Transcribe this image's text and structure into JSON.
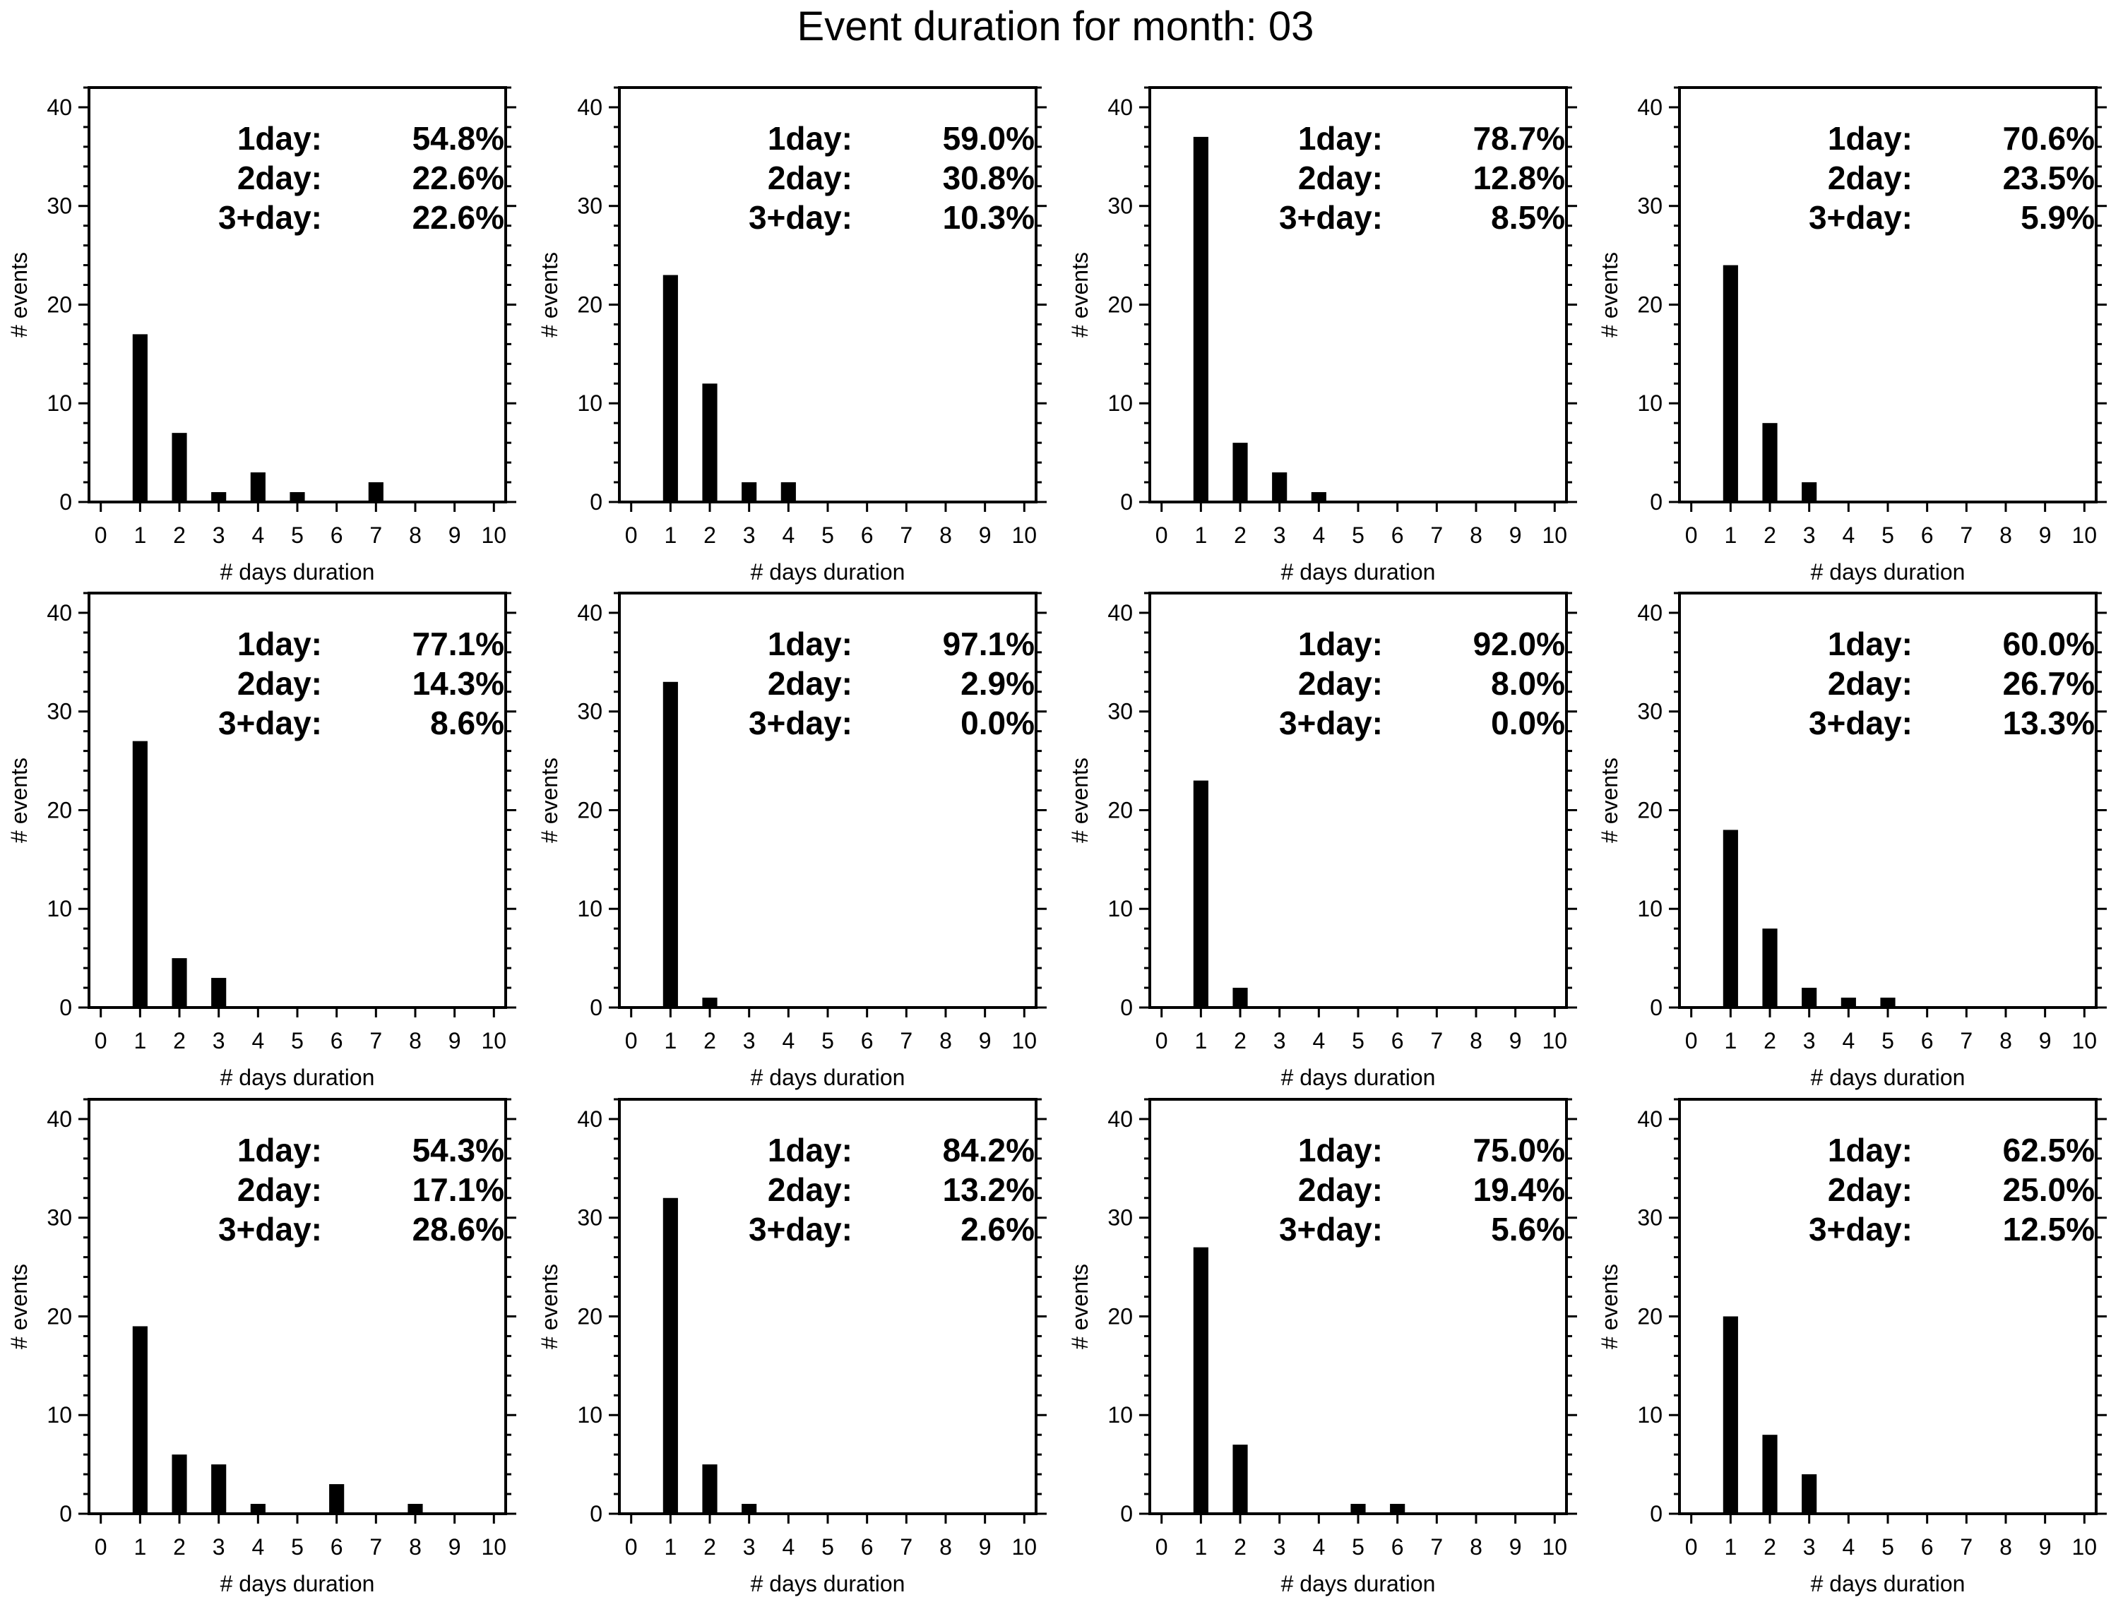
{
  "figure_title": "Event duration for month: 03",
  "chart_data": [
    {
      "type": "bar",
      "xlabel": "# days duration",
      "ylabel": "# events",
      "xlim": [
        -0.3,
        10.3
      ],
      "ylim": [
        0,
        42
      ],
      "xticks": [
        0,
        1,
        2,
        3,
        4,
        5,
        6,
        7,
        8,
        9,
        10
      ],
      "yticks": [
        0,
        10,
        20,
        30,
        40
      ],
      "x": [
        1,
        2,
        3,
        4,
        5,
        6,
        7,
        8,
        9,
        10
      ],
      "values": [
        17,
        7,
        1,
        3,
        1,
        0,
        2,
        0,
        0,
        0
      ],
      "annotation": [
        {
          "label": "1day:",
          "value": "54.8%"
        },
        {
          "label": "2day:",
          "value": "22.6%"
        },
        {
          "label": "3+day:",
          "value": "22.6%"
        }
      ]
    },
    {
      "type": "bar",
      "xlabel": "# days duration",
      "ylabel": "# events",
      "xlim": [
        -0.3,
        10.3
      ],
      "ylim": [
        0,
        42
      ],
      "xticks": [
        0,
        1,
        2,
        3,
        4,
        5,
        6,
        7,
        8,
        9,
        10
      ],
      "yticks": [
        0,
        10,
        20,
        30,
        40
      ],
      "x": [
        1,
        2,
        3,
        4,
        5,
        6,
        7,
        8,
        9,
        10
      ],
      "values": [
        23,
        12,
        2,
        2,
        0,
        0,
        0,
        0,
        0,
        0
      ],
      "annotation": [
        {
          "label": "1day:",
          "value": "59.0%"
        },
        {
          "label": "2day:",
          "value": "30.8%"
        },
        {
          "label": "3+day:",
          "value": "10.3%"
        }
      ]
    },
    {
      "type": "bar",
      "xlabel": "# days duration",
      "ylabel": "# events",
      "xlim": [
        -0.3,
        10.3
      ],
      "ylim": [
        0,
        42
      ],
      "xticks": [
        0,
        1,
        2,
        3,
        4,
        5,
        6,
        7,
        8,
        9,
        10
      ],
      "yticks": [
        0,
        10,
        20,
        30,
        40
      ],
      "x": [
        1,
        2,
        3,
        4,
        5,
        6,
        7,
        8,
        9,
        10
      ],
      "values": [
        37,
        6,
        3,
        1,
        0,
        0,
        0,
        0,
        0,
        0
      ],
      "annotation": [
        {
          "label": "1day:",
          "value": "78.7%"
        },
        {
          "label": "2day:",
          "value": "12.8%"
        },
        {
          "label": "3+day:",
          "value": "8.5%"
        }
      ]
    },
    {
      "type": "bar",
      "xlabel": "# days duration",
      "ylabel": "# events",
      "xlim": [
        -0.3,
        10.3
      ],
      "ylim": [
        0,
        42
      ],
      "xticks": [
        0,
        1,
        2,
        3,
        4,
        5,
        6,
        7,
        8,
        9,
        10
      ],
      "yticks": [
        0,
        10,
        20,
        30,
        40
      ],
      "x": [
        1,
        2,
        3,
        4,
        5,
        6,
        7,
        8,
        9,
        10
      ],
      "values": [
        24,
        8,
        2,
        0,
        0,
        0,
        0,
        0,
        0,
        0
      ],
      "annotation": [
        {
          "label": "1day:",
          "value": "70.6%"
        },
        {
          "label": "2day:",
          "value": "23.5%"
        },
        {
          "label": "3+day:",
          "value": "5.9%"
        }
      ]
    },
    {
      "type": "bar",
      "xlabel": "# days duration",
      "ylabel": "# events",
      "xlim": [
        -0.3,
        10.3
      ],
      "ylim": [
        0,
        42
      ],
      "xticks": [
        0,
        1,
        2,
        3,
        4,
        5,
        6,
        7,
        8,
        9,
        10
      ],
      "yticks": [
        0,
        10,
        20,
        30,
        40
      ],
      "x": [
        1,
        2,
        3,
        4,
        5,
        6,
        7,
        8,
        9,
        10
      ],
      "values": [
        27,
        5,
        3,
        0,
        0,
        0,
        0,
        0,
        0,
        0
      ],
      "annotation": [
        {
          "label": "1day:",
          "value": "77.1%"
        },
        {
          "label": "2day:",
          "value": "14.3%"
        },
        {
          "label": "3+day:",
          "value": "8.6%"
        }
      ]
    },
    {
      "type": "bar",
      "xlabel": "# days duration",
      "ylabel": "# events",
      "xlim": [
        -0.3,
        10.3
      ],
      "ylim": [
        0,
        42
      ],
      "xticks": [
        0,
        1,
        2,
        3,
        4,
        5,
        6,
        7,
        8,
        9,
        10
      ],
      "yticks": [
        0,
        10,
        20,
        30,
        40
      ],
      "x": [
        1,
        2,
        3,
        4,
        5,
        6,
        7,
        8,
        9,
        10
      ],
      "values": [
        33,
        1,
        0,
        0,
        0,
        0,
        0,
        0,
        0,
        0
      ],
      "annotation": [
        {
          "label": "1day:",
          "value": "97.1%"
        },
        {
          "label": "2day:",
          "value": "2.9%"
        },
        {
          "label": "3+day:",
          "value": "0.0%"
        }
      ]
    },
    {
      "type": "bar",
      "xlabel": "# days duration",
      "ylabel": "# events",
      "xlim": [
        -0.3,
        10.3
      ],
      "ylim": [
        0,
        42
      ],
      "xticks": [
        0,
        1,
        2,
        3,
        4,
        5,
        6,
        7,
        8,
        9,
        10
      ],
      "yticks": [
        0,
        10,
        20,
        30,
        40
      ],
      "x": [
        1,
        2,
        3,
        4,
        5,
        6,
        7,
        8,
        9,
        10
      ],
      "values": [
        23,
        2,
        0,
        0,
        0,
        0,
        0,
        0,
        0,
        0
      ],
      "annotation": [
        {
          "label": "1day:",
          "value": "92.0%"
        },
        {
          "label": "2day:",
          "value": "8.0%"
        },
        {
          "label": "3+day:",
          "value": "0.0%"
        }
      ]
    },
    {
      "type": "bar",
      "xlabel": "# days duration",
      "ylabel": "# events",
      "xlim": [
        -0.3,
        10.3
      ],
      "ylim": [
        0,
        42
      ],
      "xticks": [
        0,
        1,
        2,
        3,
        4,
        5,
        6,
        7,
        8,
        9,
        10
      ],
      "yticks": [
        0,
        10,
        20,
        30,
        40
      ],
      "x": [
        1,
        2,
        3,
        4,
        5,
        6,
        7,
        8,
        9,
        10
      ],
      "values": [
        18,
        8,
        2,
        1,
        1,
        0,
        0,
        0,
        0,
        0
      ],
      "annotation": [
        {
          "label": "1day:",
          "value": "60.0%"
        },
        {
          "label": "2day:",
          "value": "26.7%"
        },
        {
          "label": "3+day:",
          "value": "13.3%"
        }
      ]
    },
    {
      "type": "bar",
      "xlabel": "# days duration",
      "ylabel": "# events",
      "xlim": [
        -0.3,
        10.3
      ],
      "ylim": [
        0,
        42
      ],
      "xticks": [
        0,
        1,
        2,
        3,
        4,
        5,
        6,
        7,
        8,
        9,
        10
      ],
      "yticks": [
        0,
        10,
        20,
        30,
        40
      ],
      "x": [
        1,
        2,
        3,
        4,
        5,
        6,
        7,
        8,
        9,
        10
      ],
      "values": [
        19,
        6,
        5,
        1,
        0,
        3,
        0,
        1,
        0,
        0
      ],
      "annotation": [
        {
          "label": "1day:",
          "value": "54.3%"
        },
        {
          "label": "2day:",
          "value": "17.1%"
        },
        {
          "label": "3+day:",
          "value": "28.6%"
        }
      ]
    },
    {
      "type": "bar",
      "xlabel": "# days duration",
      "ylabel": "# events",
      "xlim": [
        -0.3,
        10.3
      ],
      "ylim": [
        0,
        42
      ],
      "xticks": [
        0,
        1,
        2,
        3,
        4,
        5,
        6,
        7,
        8,
        9,
        10
      ],
      "yticks": [
        0,
        10,
        20,
        30,
        40
      ],
      "x": [
        1,
        2,
        3,
        4,
        5,
        6,
        7,
        8,
        9,
        10
      ],
      "values": [
        32,
        5,
        1,
        0,
        0,
        0,
        0,
        0,
        0,
        0
      ],
      "annotation": [
        {
          "label": "1day:",
          "value": "84.2%"
        },
        {
          "label": "2day:",
          "value": "13.2%"
        },
        {
          "label": "3+day:",
          "value": "2.6%"
        }
      ]
    },
    {
      "type": "bar",
      "xlabel": "# days duration",
      "ylabel": "# events",
      "xlim": [
        -0.3,
        10.3
      ],
      "ylim": [
        0,
        42
      ],
      "xticks": [
        0,
        1,
        2,
        3,
        4,
        5,
        6,
        7,
        8,
        9,
        10
      ],
      "yticks": [
        0,
        10,
        20,
        30,
        40
      ],
      "x": [
        1,
        2,
        3,
        4,
        5,
        6,
        7,
        8,
        9,
        10
      ],
      "values": [
        27,
        7,
        0,
        0,
        1,
        1,
        0,
        0,
        0,
        0
      ],
      "annotation": [
        {
          "label": "1day:",
          "value": "75.0%"
        },
        {
          "label": "2day:",
          "value": "19.4%"
        },
        {
          "label": "3+day:",
          "value": "5.6%"
        }
      ]
    },
    {
      "type": "bar",
      "xlabel": "# days duration",
      "ylabel": "# events",
      "xlim": [
        -0.3,
        10.3
      ],
      "ylim": [
        0,
        42
      ],
      "xticks": [
        0,
        1,
        2,
        3,
        4,
        5,
        6,
        7,
        8,
        9,
        10
      ],
      "yticks": [
        0,
        10,
        20,
        30,
        40
      ],
      "x": [
        1,
        2,
        3,
        4,
        5,
        6,
        7,
        8,
        9,
        10
      ],
      "values": [
        20,
        8,
        4,
        0,
        0,
        0,
        0,
        0,
        0,
        0
      ],
      "annotation": [
        {
          "label": "1day:",
          "value": "62.5%"
        },
        {
          "label": "2day:",
          "value": "25.0%"
        },
        {
          "label": "3+day:",
          "value": "12.5%"
        }
      ]
    }
  ]
}
